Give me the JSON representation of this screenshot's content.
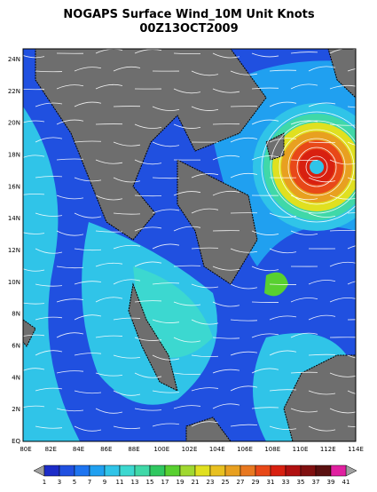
{
  "header": {
    "title": "NOGAPS Surface Wind_10M Unit Knots",
    "subtitle": "00Z13OCT2009"
  },
  "map": {
    "lat_labels": [
      "24N",
      "22N",
      "20N",
      "18N",
      "16N",
      "14N",
      "12N",
      "10N",
      "8N",
      "6N",
      "4N",
      "2N",
      "EQ"
    ],
    "lon_labels": [
      "80E",
      "82E",
      "84E",
      "86E",
      "88E",
      "100E",
      "102E",
      "104E",
      "106E",
      "108E",
      "110E",
      "112E",
      "114E"
    ]
  },
  "colorbar": {
    "ticks": [
      1,
      3,
      5,
      7,
      9,
      11,
      13,
      15,
      17,
      19,
      21,
      23,
      25,
      27,
      29,
      31,
      33,
      35,
      37,
      39,
      41
    ],
    "colors": [
      "#1c2cc8",
      "#2050e0",
      "#1e74f0",
      "#20a0f0",
      "#30c4e8",
      "#3cd8d0",
      "#40d8a8",
      "#30c860",
      "#58d030",
      "#a0d830",
      "#e0e020",
      "#e8c020",
      "#e8a020",
      "#e87820",
      "#e84818",
      "#d82010",
      "#b01010",
      "#801010",
      "#5a1010",
      "#e020a0",
      "#f0a0d0"
    ],
    "under_color": "#a0a0a0",
    "over_color": "#a0a0a0"
  }
}
